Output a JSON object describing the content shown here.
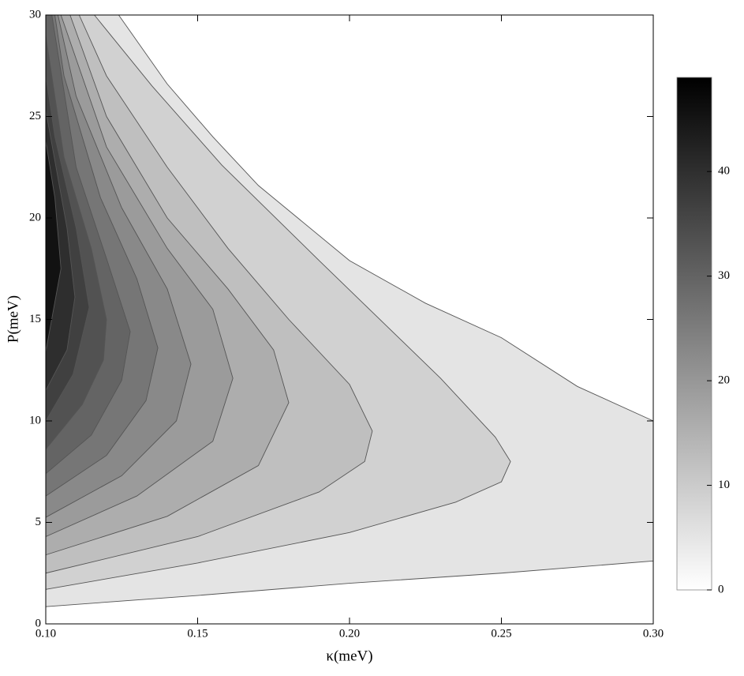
{
  "chart_data": {
    "type": "contour",
    "xlabel": "κ(meV)",
    "ylabel": "P(meV)",
    "xlim": [
      0.1,
      0.3
    ],
    "xticks": [
      {
        "value": 0.1,
        "label": "0.10"
      },
      {
        "value": 0.15,
        "label": "0.15"
      },
      {
        "value": 0.2,
        "label": "0.20"
      },
      {
        "value": 0.25,
        "label": "0.25"
      },
      {
        "value": 0.3,
        "label": "0.30"
      }
    ],
    "ylim": [
      0,
      30
    ],
    "yticks": [
      0,
      5,
      10,
      15,
      20,
      25,
      30
    ],
    "zlim": [
      0,
      49
    ],
    "colorbar_ticks": [
      0,
      10,
      20,
      30,
      40
    ],
    "contours": [
      {
        "level": 3.5,
        "x": [
          0.1,
          0.15,
          0.2,
          0.25,
          0.3,
          0.3,
          0.275,
          0.25,
          0.225,
          0.2,
          0.17,
          0.155,
          0.14,
          0.124
        ],
        "y": [
          0.85,
          1.4,
          2.0,
          2.5,
          3.1,
          10.0,
          11.7,
          14.1,
          15.8,
          17.9,
          21.6,
          24,
          26.6,
          30
        ]
      },
      {
        "level": 7,
        "x": [
          0.1,
          0.15,
          0.2,
          0.235,
          0.25,
          0.253,
          0.248,
          0.23,
          0.19,
          0.158,
          0.135,
          0.116
        ],
        "y": [
          1.7,
          3.0,
          4.5,
          6,
          7,
          8,
          9.2,
          12.1,
          17.9,
          22.6,
          26.5,
          30
        ]
      },
      {
        "level": 10.5,
        "x": [
          0.1,
          0.15,
          0.19,
          0.205,
          0.2075,
          0.2,
          0.18,
          0.16,
          0.14,
          0.12,
          0.111
        ],
        "y": [
          2.5,
          4.3,
          6.5,
          8,
          9.5,
          11.8,
          15,
          18.5,
          22.5,
          27,
          30
        ]
      },
      {
        "level": 14,
        "x": [
          0.1,
          0.14,
          0.17,
          0.18,
          0.175,
          0.16,
          0.14,
          0.12,
          0.108
        ],
        "y": [
          3.4,
          5.3,
          7.8,
          10.9,
          13.5,
          16.5,
          20,
          25,
          30
        ]
      },
      {
        "level": 17.5,
        "x": [
          0.1,
          0.13,
          0.155,
          0.1616,
          0.155,
          0.14,
          0.12,
          0.105
        ],
        "y": [
          4.3,
          6.3,
          9,
          12.1,
          15.5,
          18.5,
          23.5,
          30
        ]
      },
      {
        "level": 21,
        "x": [
          0.1,
          0.125,
          0.143,
          0.1478,
          0.14,
          0.125,
          0.11,
          0.104
        ],
        "y": [
          5.25,
          7.3,
          10,
          12.8,
          16.5,
          20.5,
          26,
          30
        ]
      },
      {
        "level": 24.5,
        "x": [
          0.1,
          0.12,
          0.133,
          0.1369,
          0.13,
          0.118,
          0.106,
          0.103
        ],
        "y": [
          6.3,
          8.3,
          11,
          13.6,
          17,
          21,
          27,
          30
        ]
      },
      {
        "level": 28,
        "x": [
          0.1,
          0.115,
          0.125,
          0.1278,
          0.12,
          0.11,
          0.102
        ],
        "y": [
          7.4,
          9.3,
          12,
          14.4,
          18,
          22.5,
          30
        ]
      },
      {
        "level": 31.5,
        "x": [
          0.1,
          0.112,
          0.119,
          0.12,
          0.115,
          0.106,
          0.1
        ],
        "y": [
          8.6,
          10.8,
          13,
          15,
          18.5,
          23,
          29
        ]
      },
      {
        "level": 35,
        "x": [
          0.1,
          0.109,
          0.1143,
          0.11,
          0.103,
          0.1
        ],
        "y": [
          10,
          12.3,
          15.6,
          19.5,
          24,
          27
        ]
      },
      {
        "level": 38.5,
        "x": [
          0.1,
          0.107,
          0.1096,
          0.107,
          0.1
        ],
        "y": [
          11.5,
          13.5,
          16.1,
          19.5,
          25.3
        ]
      },
      {
        "level": 42,
        "x": [
          0.1,
          0.105,
          0.103,
          0.1
        ],
        "y": [
          13.4,
          17.5,
          21,
          23.8
        ]
      }
    ]
  }
}
